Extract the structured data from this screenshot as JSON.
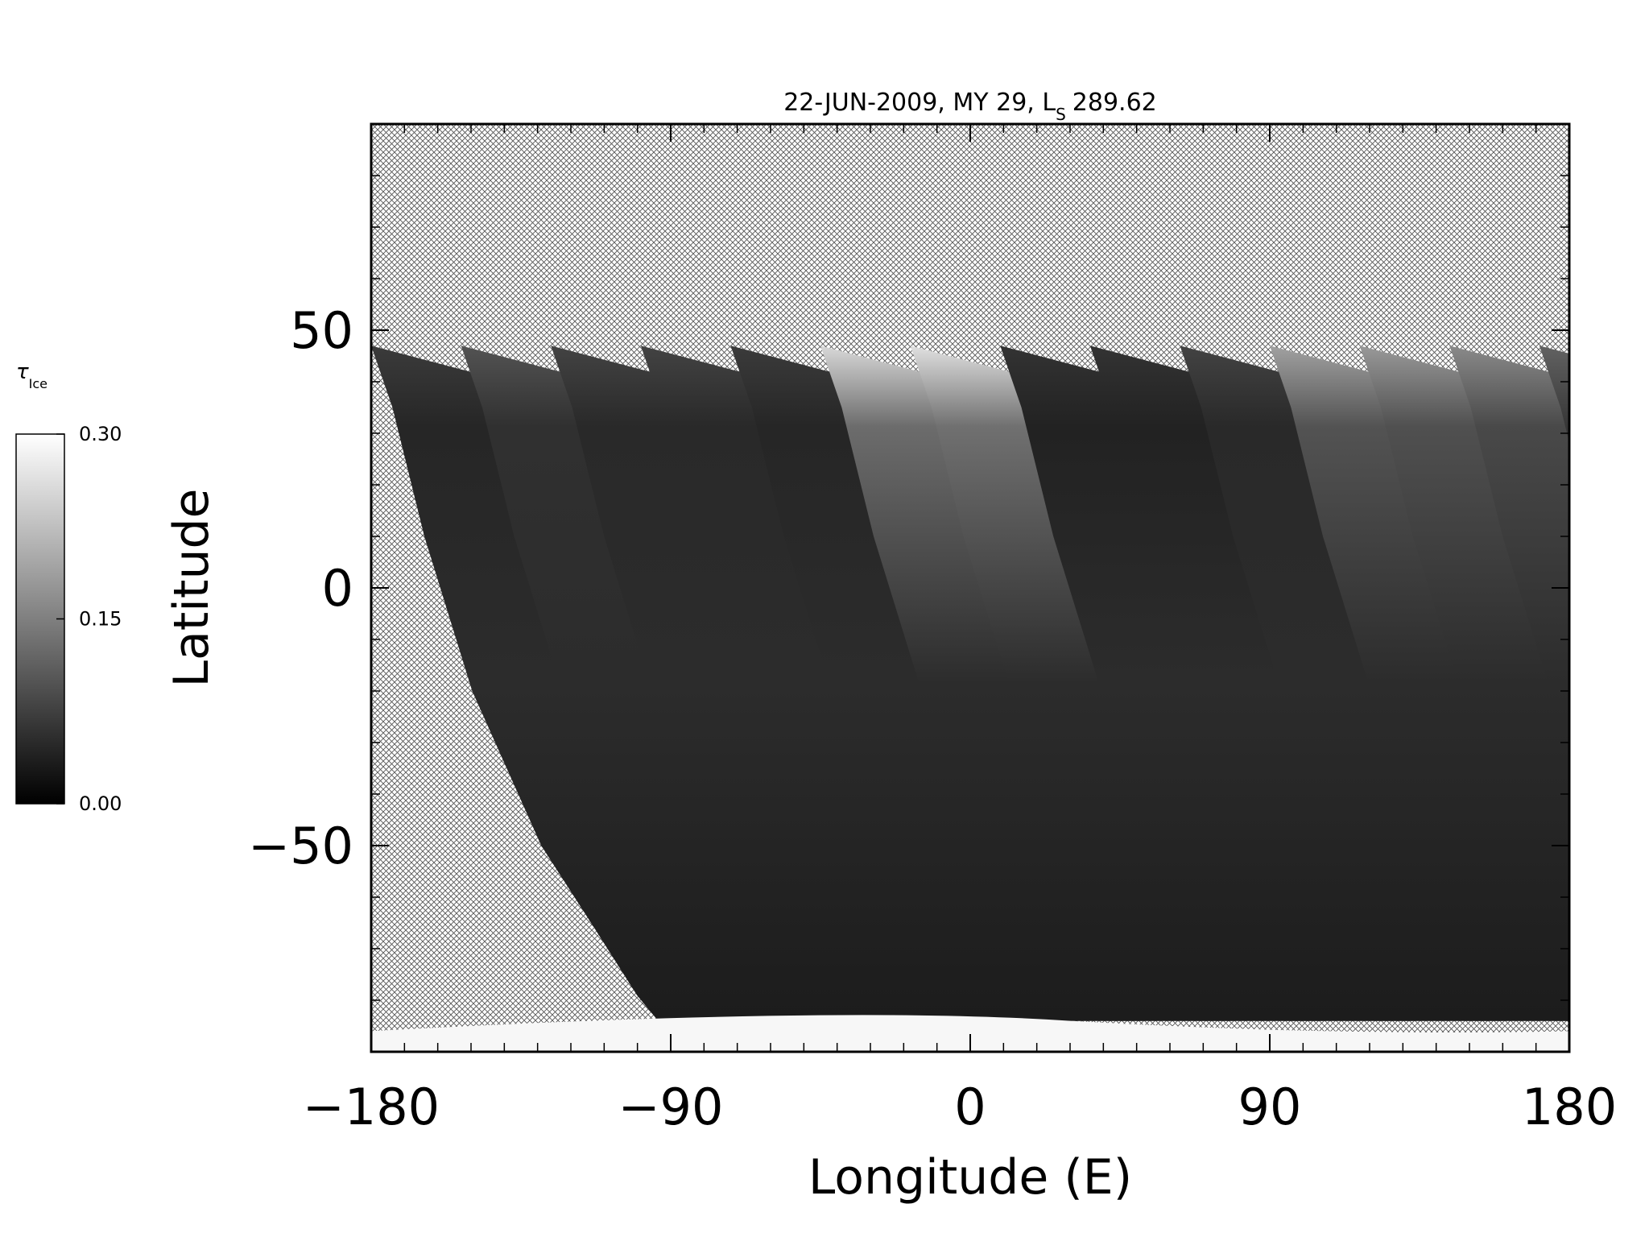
{
  "chart_data": {
    "type": "heatmap",
    "title_prefix": "22-JUN-2009, MY 29,  L",
    "title_subscript": "S",
    "title_value": "289.62",
    "xlabel": "Longitude (E)",
    "ylabel": "Latitude",
    "xlim": [
      -180,
      180
    ],
    "ylim": [
      -90,
      90
    ],
    "x_ticks": [
      -180,
      -90,
      0,
      90,
      180
    ],
    "x_tick_labels": [
      "−180",
      "−90",
      "0",
      "90",
      "180"
    ],
    "y_ticks": [
      -50,
      0,
      50
    ],
    "y_tick_labels": [
      "−50",
      "0",
      "50"
    ],
    "no_data_fill": "crosshatch",
    "colorbar": {
      "label_symbol": "τ",
      "label_subscript": "Ice",
      "min": 0.0,
      "max": 0.3,
      "tick_values": [
        0.0,
        0.15,
        0.3
      ],
      "tick_labels": [
        "0.00",
        "0.15",
        "0.30"
      ],
      "colormap": "grayscale"
    },
    "swath_start_longitudes": [
      -180,
      -153,
      -126,
      -99,
      -72,
      -45,
      -18,
      9,
      36,
      63,
      90,
      117,
      144,
      171
    ],
    "swath_peak_values": [
      0.05,
      0.08,
      0.06,
      0.06,
      0.05,
      0.25,
      0.26,
      0.04,
      0.04,
      0.06,
      0.18,
      0.17,
      0.15,
      0.1
    ],
    "south_polar_value": 0.29
  }
}
